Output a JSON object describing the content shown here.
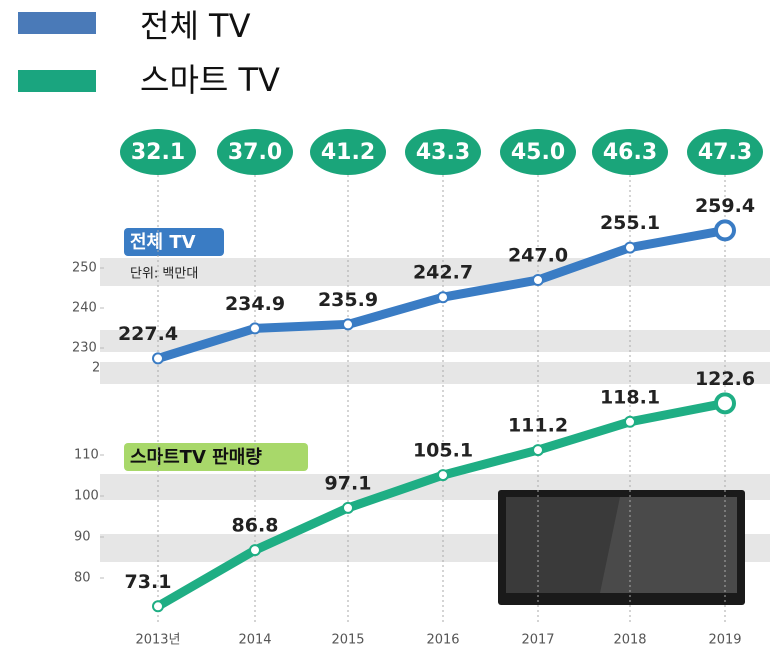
{
  "chart_data": {
    "type": "line",
    "categories": [
      "2013년",
      "2014",
      "2015",
      "2016",
      "2017",
      "2018",
      "2019"
    ],
    "series": [
      {
        "name": "전체 TV",
        "color": "#3a7cc4",
        "values": [
          227.4,
          234.9,
          235.9,
          242.7,
          247.0,
          255.1,
          259.4
        ],
        "value_labels": [
          "227.4",
          "234.9",
          "235.9",
          "242.7",
          "247.0",
          "255.1",
          "259.4"
        ]
      },
      {
        "name": "스마트 TV",
        "color": "#1fae84",
        "axis": "y2",
        "values": [
          73.1,
          86.8,
          97.1,
          105.1,
          111.2,
          118.1,
          122.6
        ],
        "value_labels": [
          "73.1",
          "86.8",
          "97.1",
          "105.1",
          "111.2",
          "118.1",
          "122.6"
        ]
      }
    ],
    "top_values": [
      32.1,
      37.0,
      41.2,
      43.3,
      45.0,
      46.3,
      47.3
    ],
    "top_value_labels": [
      "32.1",
      "37.0",
      "41.2",
      "43.3",
      "45.0",
      "46.3",
      "47.3"
    ],
    "series_label_total": "전체 TV",
    "unit_note": "단위: 백만대",
    "series_label_smart": "스마트TV 판매량",
    "axis_break_label": "2",
    "ylim": [
      222,
      262
    ],
    "yticks": [
      230,
      240,
      250
    ],
    "y2lim": [
      70,
      125
    ],
    "y2ticks": [
      80,
      90,
      100,
      110
    ]
  }
}
